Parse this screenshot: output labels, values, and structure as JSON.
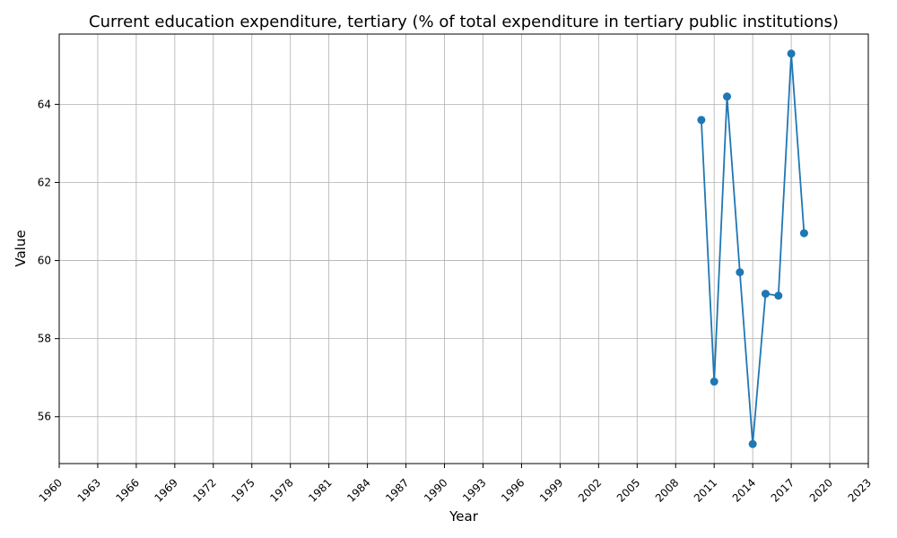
{
  "chart_data": {
    "type": "line",
    "title": "Current education expenditure, tertiary (% of total expenditure in tertiary public institutions)",
    "xlabel": "Year",
    "ylabel": "Value",
    "xlim": [
      1960,
      2023
    ],
    "ylim": [
      54.8,
      65.8
    ],
    "x_ticks": [
      1960,
      1963,
      1966,
      1969,
      1972,
      1975,
      1978,
      1981,
      1984,
      1987,
      1990,
      1993,
      1996,
      1999,
      2002,
      2005,
      2008,
      2011,
      2014,
      2017,
      2020,
      2023
    ],
    "y_ticks": [
      56,
      58,
      60,
      62,
      64
    ],
    "grid": true,
    "color": "#1f77b4",
    "series": [
      {
        "x": [
          2010,
          2011,
          2012,
          2013,
          2014,
          2015,
          2016,
          2017,
          2018
        ],
        "values": [
          63.6,
          56.9,
          64.2,
          59.7,
          55.3,
          59.15,
          59.1,
          65.3,
          60.7
        ]
      }
    ]
  }
}
